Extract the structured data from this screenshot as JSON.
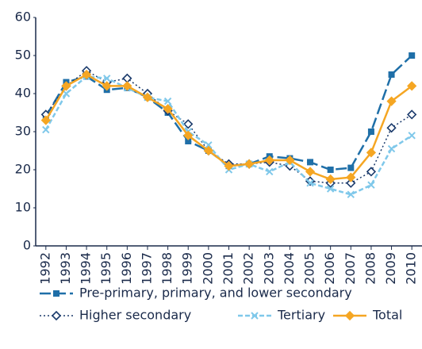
{
  "chart_data": {
    "type": "line",
    "categories": [
      "1992",
      "1993",
      "1994",
      "1995",
      "1996",
      "1997",
      "1998",
      "1999",
      "2000",
      "2001",
      "2002",
      "2003",
      "2004",
      "2005",
      "2006",
      "2007",
      "2008",
      "2009",
      "2010"
    ],
    "series": [
      {
        "name": "Pre-primary, primary, and lower secondary",
        "color": "#1f6fa8",
        "dash": "14 5",
        "marker": "square",
        "values": [
          34,
          43,
          44.5,
          41,
          41.5,
          39,
          35,
          27.5,
          25,
          21,
          21.5,
          23.5,
          23,
          22,
          20,
          20.5,
          30,
          45,
          50
        ]
      },
      {
        "name": "Higher secondary",
        "color": "#1a3a6b",
        "dash": "2 3",
        "marker": "diamond-open",
        "values": [
          34.5,
          42,
          46,
          43,
          44,
          40,
          35.5,
          32,
          25,
          21.5,
          21.5,
          22,
          21,
          17,
          16.5,
          16.5,
          19.5,
          31,
          34.5
        ]
      },
      {
        "name": "Tertiary",
        "color": "#7fc8ea",
        "dash": "6 3",
        "marker": "x",
        "values": [
          30.5,
          40,
          44.5,
          44,
          41.5,
          39,
          38,
          30,
          26.5,
          20,
          21.5,
          19.5,
          22,
          16.5,
          15,
          13.5,
          16,
          25.5,
          29
        ]
      },
      {
        "name": "Total",
        "color": "#f5a623",
        "dash": "none",
        "marker": "diamond",
        "values": [
          33,
          42,
          45,
          42,
          42,
          39,
          36,
          29,
          25,
          21,
          21.5,
          22.5,
          22.5,
          19.5,
          17.5,
          18,
          24.5,
          38,
          42
        ]
      }
    ],
    "ylim": [
      0,
      60
    ],
    "yticks": [
      0,
      10,
      20,
      30,
      40,
      50,
      60
    ]
  }
}
